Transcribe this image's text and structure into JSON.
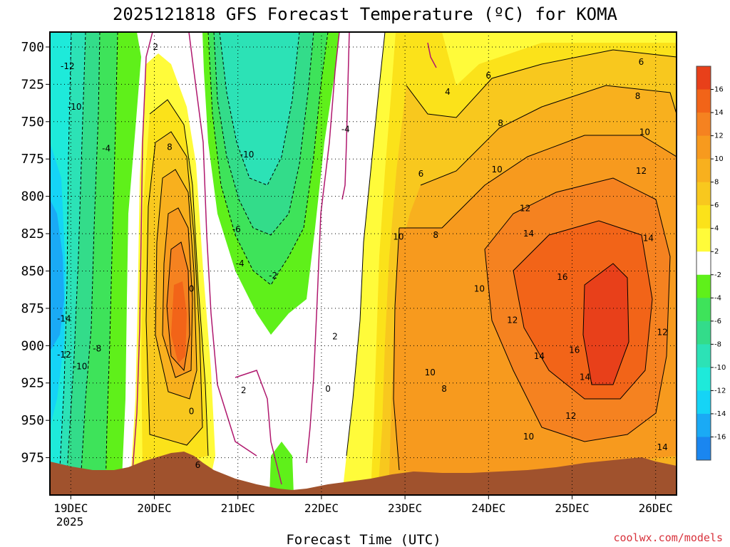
{
  "chart_data": {
    "type": "heatmap",
    "title": "2025121818 GFS Forecast Temperature (ºC) for KOMA",
    "xlabel": "Forecast Time (UTC)",
    "ylabel": "",
    "x_ticks": [
      "19DEC",
      "20DEC",
      "21DEC",
      "22DEC",
      "23DEC",
      "24DEC",
      "25DEC",
      "26DEC"
    ],
    "x_year_label": "2025",
    "xlim_days": [
      18.75,
      26.25
    ],
    "y_ticks": [
      700,
      725,
      750,
      775,
      800,
      825,
      850,
      875,
      900,
      925,
      950,
      975
    ],
    "ylim": [
      690,
      1000
    ],
    "y_reversed": true,
    "grid": true,
    "colorbar": {
      "ticks": [
        16,
        14,
        12,
        10,
        8,
        6,
        4,
        2,
        -2,
        -4,
        -6,
        -8,
        -10,
        -12,
        -14,
        -16
      ],
      "colors": [
        "#e8401a",
        "#f26418",
        "#f58220",
        "#f79a1e",
        "#f8b01e",
        "#f8c81e",
        "#fbe21a",
        "#fffb3a",
        "#ffffff",
        "#5ff01a",
        "#3ee35a",
        "#33dc8a",
        "#2ce2b6",
        "#1eeada",
        "#15d4f6",
        "#1aaaf5",
        "#1a86f0"
      ]
    },
    "contour_labels": [
      {
        "text": "-12",
        "day": 19.0,
        "p": 713
      },
      {
        "text": "-10",
        "day": 19.1,
        "p": 740
      },
      {
        "text": "-4",
        "day": 19.55,
        "p": 768
      },
      {
        "text": "-14",
        "day": 18.95,
        "p": 882
      },
      {
        "text": "-12",
        "day": 18.95,
        "p": 906
      },
      {
        "text": "-10",
        "day": 19.18,
        "p": 914
      },
      {
        "text": "-8",
        "day": 19.42,
        "p": 902
      },
      {
        "text": "2",
        "day": 20.25,
        "p": 700
      },
      {
        "text": "8",
        "day": 20.45,
        "p": 767
      },
      {
        "text": "0",
        "day": 20.76,
        "p": 862
      },
      {
        "text": "0",
        "day": 20.76,
        "p": 944
      },
      {
        "text": "6",
        "day": 20.85,
        "p": 980
      },
      {
        "text": "-10",
        "day": 21.55,
        "p": 772
      },
      {
        "text": "-6",
        "day": 21.4,
        "p": 822
      },
      {
        "text": "-4",
        "day": 21.45,
        "p": 845
      },
      {
        "text": "-2",
        "day": 21.92,
        "p": 853
      },
      {
        "text": "2",
        "day": 21.5,
        "p": 930
      },
      {
        "text": "0",
        "day": 22.7,
        "p": 929
      },
      {
        "text": "2",
        "day": 22.8,
        "p": 894
      },
      {
        "text": "-4",
        "day": 22.95,
        "p": 755
      },
      {
        "text": "4",
        "day": 24.4,
        "p": 730
      },
      {
        "text": "6",
        "day": 24.98,
        "p": 719
      },
      {
        "text": "8",
        "day": 25.15,
        "p": 751
      },
      {
        "text": "10",
        "day": 25.1,
        "p": 782
      },
      {
        "text": "12",
        "day": 25.5,
        "p": 808
      },
      {
        "text": "14",
        "day": 25.55,
        "p": 825
      },
      {
        "text": "10",
        "day": 23.7,
        "p": 827
      },
      {
        "text": "6",
        "day": 24.02,
        "p": 785
      },
      {
        "text": "8",
        "day": 24.23,
        "p": 826
      },
      {
        "text": "10",
        "day": 24.85,
        "p": 862
      },
      {
        "text": "12",
        "day": 25.32,
        "p": 883
      },
      {
        "text": "16",
        "day": 26.03,
        "p": 854
      },
      {
        "text": "14",
        "day": 25.7,
        "p": 907
      },
      {
        "text": "16",
        "day": 26.2,
        "p": 903
      },
      {
        "text": "14",
        "day": 26.35,
        "p": 921
      },
      {
        "text": "14",
        "day": 27.25,
        "p": 828
      },
      {
        "text": "12",
        "day": 27.15,
        "p": 783
      },
      {
        "text": "10",
        "day": 27.2,
        "p": 757
      },
      {
        "text": "8",
        "day": 27.1,
        "p": 733
      },
      {
        "text": "6",
        "day": 27.15,
        "p": 710
      },
      {
        "text": "12",
        "day": 27.45,
        "p": 891
      },
      {
        "text": "12",
        "day": 26.15,
        "p": 947
      },
      {
        "text": "10",
        "day": 25.55,
        "p": 961
      },
      {
        "text": "10",
        "day": 24.15,
        "p": 918
      },
      {
        "text": "8",
        "day": 24.35,
        "p": 929
      },
      {
        "text": "14",
        "day": 27.45,
        "p": 968
      }
    ]
  },
  "credit": "coolwx.com/models"
}
